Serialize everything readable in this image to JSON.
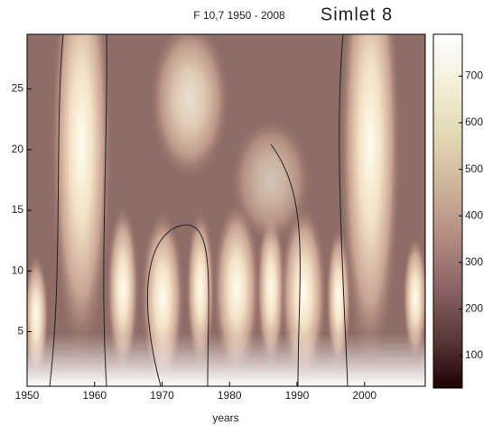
{
  "chart_data": {
    "type": "contour",
    "title": "F 10,7  1950 - 2008",
    "subtitle": "Simlet 8",
    "xlabel": "years",
    "xlim": [
      1950,
      2009
    ],
    "xticks": [
      1950,
      1960,
      1970,
      1980,
      1990,
      2000
    ],
    "ylim": [
      0.5,
      29.5
    ],
    "yticks": [
      5,
      10,
      15,
      20,
      25
    ],
    "colormap": "pink",
    "clim": [
      30,
      790
    ],
    "cticks": [
      100,
      200,
      300,
      400,
      500,
      600,
      700
    ]
  }
}
